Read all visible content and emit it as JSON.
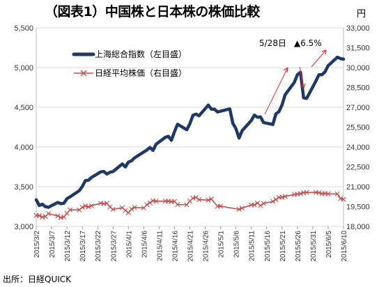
{
  "title": "（図表1）中国株と日本株の株価比較",
  "unit_right": "円",
  "source": "出所：日経QUICK",
  "chart_data": {
    "type": "line",
    "title": "（図表1）中国株と日本株の株価比較",
    "x_tick_labels": [
      "2015/3/2",
      "2015/3/7",
      "2015/3/12",
      "2015/3/17",
      "2015/3/22",
      "2015/3/27",
      "2015/4/1",
      "2015/4/6",
      "2015/4/11",
      "2015/4/16",
      "2015/4/21",
      "2015/4/26",
      "2015/5/1",
      "2015/5/6",
      "2015/5/11",
      "2015/5/16",
      "2015/5/21",
      "2015/5/26",
      "2015/5/31",
      "2015/6/5",
      "2015/6/10"
    ],
    "x_range": [
      "2015/3/2",
      "2015/6/10"
    ],
    "y_left": {
      "min": 3000,
      "max": 5500,
      "ticks": [
        "3,000",
        "3,500",
        "4,000",
        "4,500",
        "5,000",
        "5,500"
      ]
    },
    "y_right": {
      "min": 18000,
      "max": 33000,
      "ticks": [
        "18,000",
        "19,500",
        "21,000",
        "22,500",
        "24,000",
        "25,500",
        "27,000",
        "28,500",
        "30,000",
        "31,500",
        "33,000"
      ]
    },
    "grid": true,
    "legend_position": "top-left",
    "series": [
      {
        "name": "上海総合指数（左目盛）",
        "axis": "left",
        "color": "#1f3864",
        "points": [
          [
            "2015/3/2",
            3335
          ],
          [
            "2015/3/3",
            3263
          ],
          [
            "2015/3/4",
            3279
          ],
          [
            "2015/3/5",
            3248
          ],
          [
            "2015/3/6",
            3241
          ],
          [
            "2015/3/9",
            3302
          ],
          [
            "2015/3/10",
            3286
          ],
          [
            "2015/3/11",
            3291
          ],
          [
            "2015/3/12",
            3349
          ],
          [
            "2015/3/13",
            3372
          ],
          [
            "2015/3/16",
            3449
          ],
          [
            "2015/3/17",
            3503
          ],
          [
            "2015/3/18",
            3577
          ],
          [
            "2015/3/19",
            3582
          ],
          [
            "2015/3/20",
            3617
          ],
          [
            "2015/3/23",
            3687
          ],
          [
            "2015/3/24",
            3691
          ],
          [
            "2015/3/25",
            3660
          ],
          [
            "2015/3/26",
            3682
          ],
          [
            "2015/3/27",
            3691
          ],
          [
            "2015/3/30",
            3786
          ],
          [
            "2015/3/31",
            3748
          ],
          [
            "2015/4/1",
            3810
          ],
          [
            "2015/4/2",
            3825
          ],
          [
            "2015/4/3",
            3863
          ],
          [
            "2015/4/7",
            3961
          ],
          [
            "2015/4/8",
            3994
          ],
          [
            "2015/4/9",
            3957
          ],
          [
            "2015/4/10",
            4034
          ],
          [
            "2015/4/13",
            4121
          ],
          [
            "2015/4/14",
            4135
          ],
          [
            "2015/4/15",
            4084
          ],
          [
            "2015/4/16",
            4194
          ],
          [
            "2015/4/17",
            4287
          ],
          [
            "2015/4/20",
            4217
          ],
          [
            "2015/4/21",
            4293
          ],
          [
            "2015/4/22",
            4398
          ],
          [
            "2015/4/23",
            4414
          ],
          [
            "2015/4/24",
            4393
          ],
          [
            "2015/4/27",
            4527
          ],
          [
            "2015/4/28",
            4476
          ],
          [
            "2015/4/29",
            4476
          ],
          [
            "2015/4/30",
            4441
          ],
          [
            "2015/5/4",
            4480
          ],
          [
            "2015/5/5",
            4298
          ],
          [
            "2015/5/6",
            4229
          ],
          [
            "2015/5/7",
            4112
          ],
          [
            "2015/5/8",
            4205
          ],
          [
            "2015/5/11",
            4333
          ],
          [
            "2015/5/12",
            4401
          ],
          [
            "2015/5/13",
            4375
          ],
          [
            "2015/5/14",
            4378
          ],
          [
            "2015/5/15",
            4308
          ],
          [
            "2015/5/18",
            4283
          ],
          [
            "2015/5/19",
            4417
          ],
          [
            "2015/5/20",
            4446
          ],
          [
            "2015/5/21",
            4529
          ],
          [
            "2015/5/22",
            4657
          ],
          [
            "2015/5/25",
            4813
          ],
          [
            "2015/5/26",
            4910
          ],
          [
            "2015/5/27",
            4941
          ],
          [
            "2015/5/28",
            4620
          ],
          [
            "2015/5/29",
            4611
          ],
          [
            "2015/6/1",
            4829
          ],
          [
            "2015/6/2",
            4910
          ],
          [
            "2015/6/3",
            4910
          ],
          [
            "2015/6/4",
            4947
          ],
          [
            "2015/6/5",
            5023
          ],
          [
            "2015/6/8",
            5131
          ],
          [
            "2015/6/9",
            5113
          ],
          [
            "2015/6/10",
            5106
          ]
        ]
      },
      {
        "name": "日経平均株価（右目盛）",
        "axis": "right",
        "color": "#c0504d",
        "points": [
          [
            "2015/3/2",
            18826
          ],
          [
            "2015/3/3",
            18815
          ],
          [
            "2015/3/4",
            18704
          ],
          [
            "2015/3/5",
            18751
          ],
          [
            "2015/3/6",
            18971
          ],
          [
            "2015/3/9",
            18790
          ],
          [
            "2015/3/10",
            18665
          ],
          [
            "2015/3/11",
            18723
          ],
          [
            "2015/3/12",
            18991
          ],
          [
            "2015/3/13",
            19254
          ],
          [
            "2015/3/16",
            19246
          ],
          [
            "2015/3/17",
            19437
          ],
          [
            "2015/3/18",
            19544
          ],
          [
            "2015/3/19",
            19476
          ],
          [
            "2015/3/20",
            19560
          ],
          [
            "2015/3/23",
            19754
          ],
          [
            "2015/3/24",
            19713
          ],
          [
            "2015/3/25",
            19746
          ],
          [
            "2015/3/26",
            19471
          ],
          [
            "2015/3/27",
            19285
          ],
          [
            "2015/3/30",
            19411
          ],
          [
            "2015/3/31",
            19206
          ],
          [
            "2015/4/1",
            19034
          ],
          [
            "2015/4/2",
            19312
          ],
          [
            "2015/4/3",
            19435
          ],
          [
            "2015/4/6",
            19397
          ],
          [
            "2015/4/7",
            19640
          ],
          [
            "2015/4/8",
            19789
          ],
          [
            "2015/4/9",
            19937
          ],
          [
            "2015/4/10",
            19907
          ],
          [
            "2015/4/13",
            19905
          ],
          [
            "2015/4/14",
            19908
          ],
          [
            "2015/4/15",
            19869
          ],
          [
            "2015/4/16",
            19885
          ],
          [
            "2015/4/17",
            19652
          ],
          [
            "2015/4/20",
            19634
          ],
          [
            "2015/4/21",
            19909
          ],
          [
            "2015/4/22",
            20133
          ],
          [
            "2015/4/23",
            20187
          ],
          [
            "2015/4/24",
            20020
          ],
          [
            "2015/4/27",
            19983
          ],
          [
            "2015/4/28",
            20058
          ],
          [
            "2015/4/30",
            19520
          ],
          [
            "2015/5/1",
            19531
          ],
          [
            "2015/5/7",
            19292
          ],
          [
            "2015/5/8",
            19379
          ],
          [
            "2015/5/11",
            19620
          ],
          [
            "2015/5/12",
            19624
          ],
          [
            "2015/5/13",
            19764
          ],
          [
            "2015/5/14",
            19570
          ],
          [
            "2015/5/15",
            19732
          ],
          [
            "2015/5/18",
            19890
          ],
          [
            "2015/5/19",
            20026
          ],
          [
            "2015/5/20",
            20196
          ],
          [
            "2015/5/21",
            20202
          ],
          [
            "2015/5/22",
            20264
          ],
          [
            "2015/5/25",
            20413
          ],
          [
            "2015/5/26",
            20437
          ],
          [
            "2015/5/27",
            20473
          ],
          [
            "2015/5/28",
            20551
          ],
          [
            "2015/5/29",
            20563
          ],
          [
            "2015/6/1",
            20569
          ],
          [
            "2015/6/2",
            20543
          ],
          [
            "2015/6/3",
            20473
          ],
          [
            "2015/6/4",
            20488
          ],
          [
            "2015/6/5",
            20460
          ],
          [
            "2015/6/8",
            20457
          ],
          [
            "2015/6/9",
            20096
          ],
          [
            "2015/6/10",
            20046
          ]
        ]
      }
    ],
    "annotations": {
      "date_label": "5/28日",
      "change_label": "▲6.5%"
    }
  }
}
